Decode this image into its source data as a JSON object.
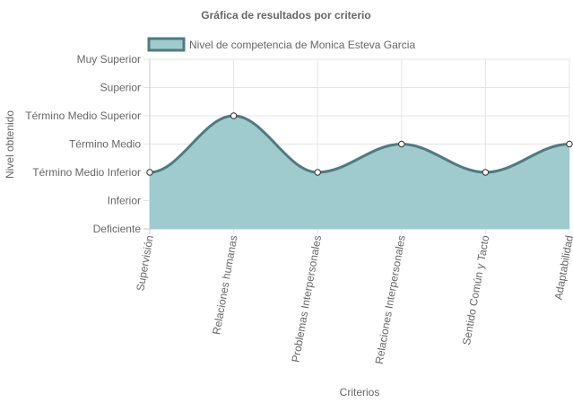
{
  "chart_data": {
    "type": "area",
    "title": "Gráfica de resultados por criterio",
    "xlabel": "Criterios",
    "ylabel": "Nivel obtenido",
    "categories": [
      "Supervisión",
      "Relaciones humanas",
      "Problemas Interpersonales",
      "Relaciones Interpersonales",
      "Sentido Común y Tacto",
      "Adaptabilidad"
    ],
    "y_levels": [
      "Deficiente",
      "Inferior",
      "Término Medio Inferior",
      "Término Medio",
      "Término Medio Superior",
      "Superior",
      "Muy Superior"
    ],
    "ylim": [
      1,
      7
    ],
    "grid": true,
    "legend_position": "top",
    "series": [
      {
        "name": "Nivel de competencia de Monica Esteva Garcia",
        "values": [
          3,
          5,
          3,
          4,
          3,
          4
        ],
        "fill_color": "#9fcbcf",
        "line_color": "#4f7b80"
      }
    ]
  }
}
